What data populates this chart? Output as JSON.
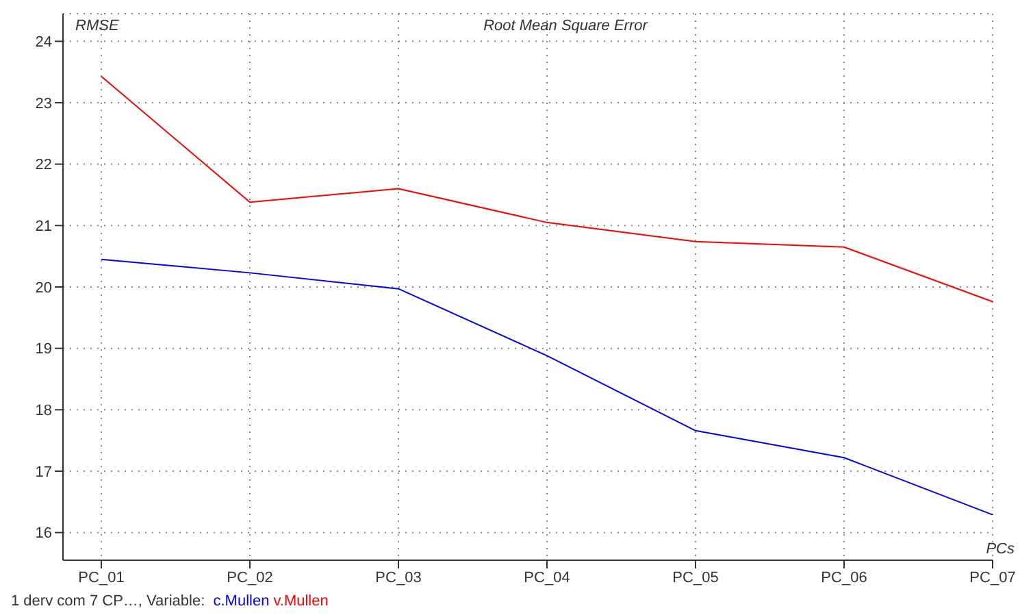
{
  "chart_data": {
    "type": "line",
    "title": "Root Mean Square Error",
    "ylabel": "RMSE",
    "xlabel": "PCs",
    "categories": [
      "PC_01",
      "PC_02",
      "PC_03",
      "PC_04",
      "PC_05",
      "PC_06",
      "PC_07"
    ],
    "series": [
      {
        "name": "c.Mullen",
        "color": "#0000ff",
        "values": [
          20.45,
          20.23,
          19.97,
          18.88,
          17.66,
          17.22,
          16.29
        ]
      },
      {
        "name": "v.Mullen",
        "color": "#ff0000",
        "values": [
          23.43,
          21.38,
          21.6,
          21.05,
          20.74,
          20.65,
          19.76
        ]
      }
    ],
    "ylim": [
      15.55,
      24.45
    ],
    "yticks": [
      16,
      17,
      18,
      19,
      20,
      21,
      22,
      23,
      24
    ],
    "grid": true,
    "legend": "bottom",
    "marker": "none",
    "line_style": "solid",
    "annotations": [
      "1 derv com 7 CP…, Variable:"
    ]
  }
}
